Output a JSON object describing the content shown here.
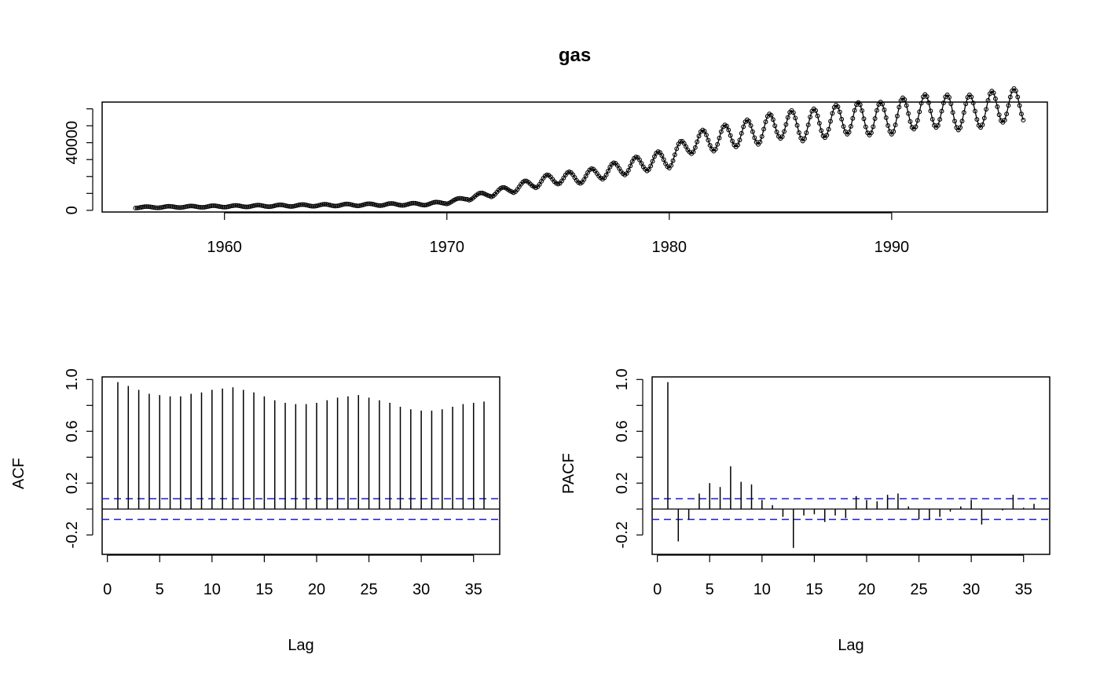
{
  "chart_data": [
    {
      "type": "line",
      "title": "gas",
      "xlabel": "",
      "ylabel": "",
      "xlim": [
        1954.5,
        1997
      ],
      "ylim": [
        -1000,
        64000
      ],
      "xticks": [
        1960,
        1970,
        1980,
        1990
      ],
      "yticks": [
        0,
        40000
      ],
      "ytick_labels": [
        "0",
        "40000"
      ],
      "minor_yticks": [
        0,
        10000,
        20000,
        30000,
        40000,
        50000,
        60000
      ],
      "start": 1956,
      "frequency": 12,
      "markers": "open-circle",
      "yearly_means": [
        1750,
        1900,
        2050,
        2200,
        2350,
        2500,
        2650,
        2800,
        2950,
        3100,
        3250,
        3400,
        3550,
        3700,
        4700,
        7500,
        10000,
        13000,
        16500,
        19000,
        19500,
        22500,
        25500,
        28500,
        30500,
        40000,
        42000,
        45000,
        47000,
        51000,
        50000,
        52000,
        54500,
        54000,
        55000,
        58000,
        59000,
        57500,
        59000,
        62000
      ],
      "seasonal_amplitude": [
        400,
        420,
        440,
        460,
        480,
        500,
        520,
        540,
        560,
        580,
        600,
        620,
        640,
        660,
        900,
        1500,
        2000,
        2600,
        3200,
        3500,
        3600,
        4100,
        4600,
        5200,
        5500,
        6500,
        7000,
        7500,
        8000,
        8500,
        9000,
        9000,
        9500,
        9500,
        10000,
        10000,
        10000,
        10000,
        10000,
        10000
      ]
    },
    {
      "type": "bar",
      "title": "",
      "xlabel": "Lag",
      "ylabel": "ACF",
      "xlim": [
        -0.5,
        37.5
      ],
      "ylim": [
        -0.35,
        1.02
      ],
      "xticks": [
        0,
        5,
        10,
        15,
        20,
        25,
        30,
        35
      ],
      "yticks": [
        -0.2,
        0.2,
        0.6,
        1.0
      ],
      "ytick_labels": [
        "-0.2",
        "0.2",
        "0.6",
        "1.0"
      ],
      "minor_yticks": [
        -0.2,
        0.0,
        0.2,
        0.4,
        0.6,
        0.8,
        1.0
      ],
      "ci": 0.08,
      "lags": [
        1,
        2,
        3,
        4,
        5,
        6,
        7,
        8,
        9,
        10,
        11,
        12,
        13,
        14,
        15,
        16,
        17,
        18,
        19,
        20,
        21,
        22,
        23,
        24,
        25,
        26,
        27,
        28,
        29,
        30,
        31,
        32,
        33,
        34,
        35,
        36
      ],
      "values": [
        0.98,
        0.95,
        0.92,
        0.89,
        0.88,
        0.87,
        0.87,
        0.89,
        0.9,
        0.92,
        0.93,
        0.94,
        0.92,
        0.9,
        0.87,
        0.84,
        0.82,
        0.81,
        0.81,
        0.82,
        0.84,
        0.86,
        0.87,
        0.88,
        0.86,
        0.84,
        0.82,
        0.79,
        0.77,
        0.76,
        0.76,
        0.77,
        0.79,
        0.81,
        0.82,
        0.83
      ]
    },
    {
      "type": "bar",
      "title": "",
      "xlabel": "Lag",
      "ylabel": "PACF",
      "xlim": [
        -0.5,
        37.5
      ],
      "ylim": [
        -0.35,
        1.02
      ],
      "xticks": [
        0,
        5,
        10,
        15,
        20,
        25,
        30,
        35
      ],
      "yticks": [
        -0.2,
        0.2,
        0.6,
        1.0
      ],
      "ytick_labels": [
        "-0.2",
        "0.2",
        "0.6",
        "1.0"
      ],
      "minor_yticks": [
        -0.2,
        0.0,
        0.2,
        0.4,
        0.6,
        0.8,
        1.0
      ],
      "ci": 0.08,
      "lags": [
        1,
        2,
        3,
        4,
        5,
        6,
        7,
        8,
        9,
        10,
        11,
        12,
        13,
        14,
        15,
        16,
        17,
        18,
        19,
        20,
        21,
        22,
        23,
        24,
        25,
        26,
        27,
        28,
        29,
        30,
        31,
        32,
        33,
        34,
        35,
        36
      ],
      "values": [
        0.98,
        -0.25,
        -0.08,
        0.12,
        0.2,
        0.17,
        0.33,
        0.21,
        0.19,
        0.07,
        0.03,
        -0.06,
        -0.3,
        -0.05,
        -0.04,
        -0.1,
        -0.05,
        -0.07,
        0.1,
        0.07,
        0.06,
        0.11,
        0.12,
        0.02,
        -0.08,
        -0.08,
        -0.06,
        -0.02,
        0.02,
        0.07,
        -0.12,
        0.0,
        -0.01,
        0.11,
        0.01,
        0.04
      ]
    }
  ]
}
